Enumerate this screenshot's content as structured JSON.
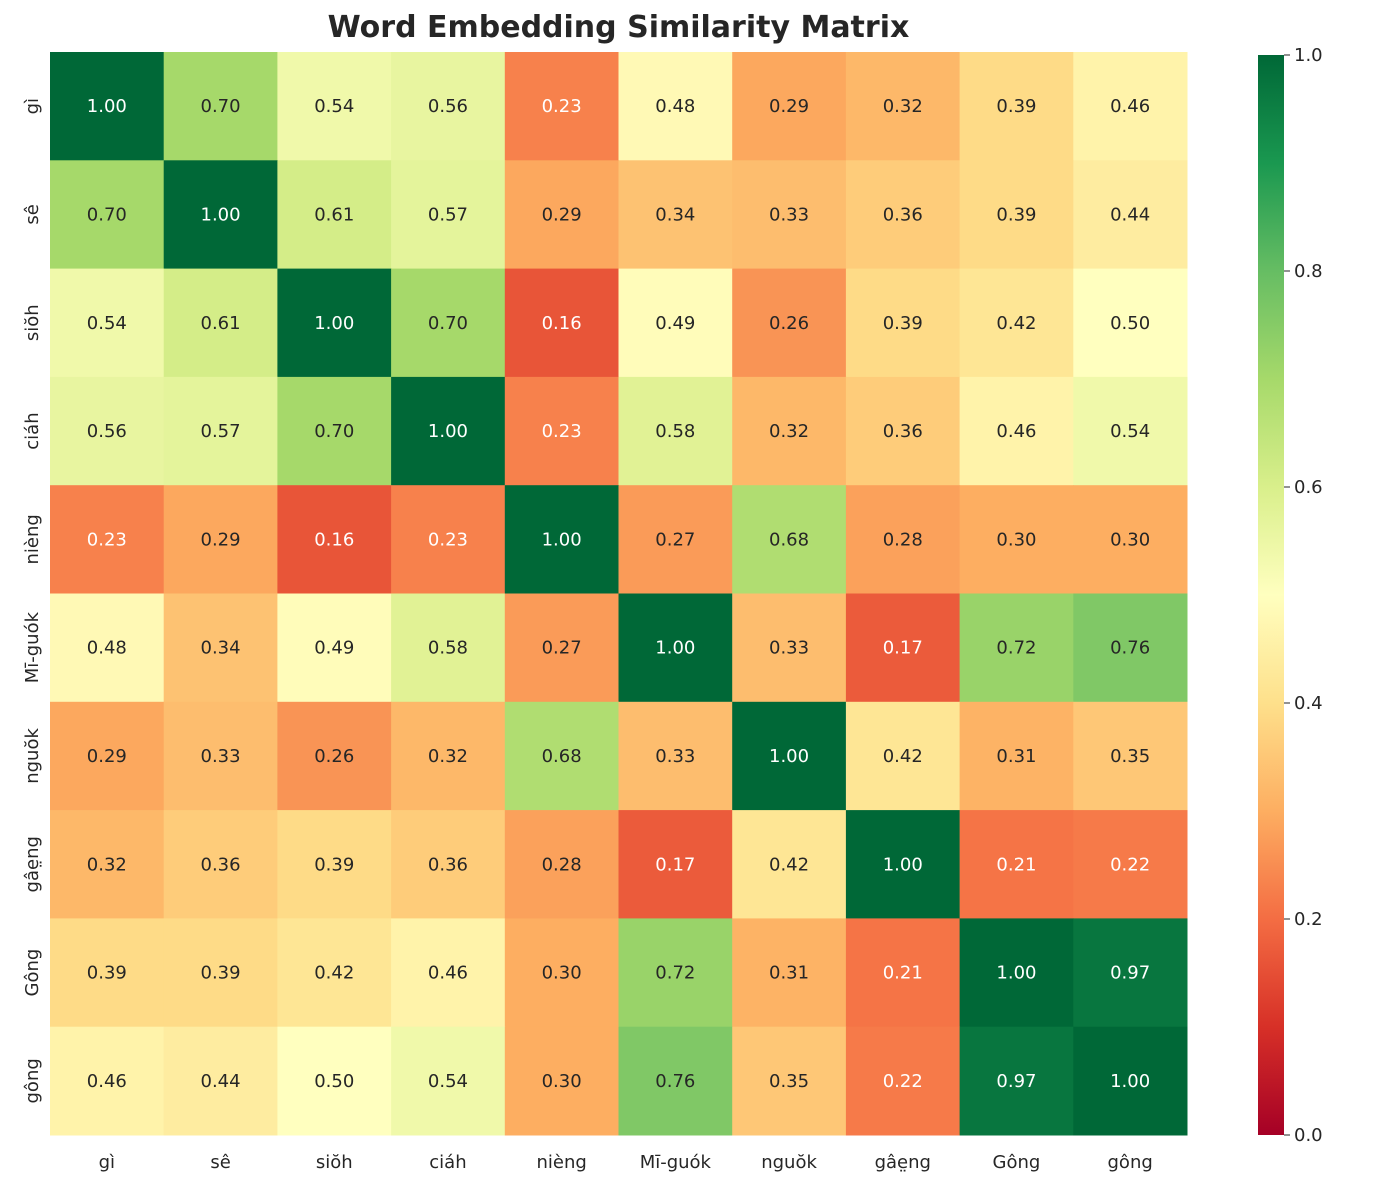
{
  "chart_data": {
    "type": "heatmap",
    "title": "Word Embedding Similarity Matrix",
    "xlabel": "",
    "ylabel": "",
    "x_labels": [
      "gì",
      "sê",
      "siŏh",
      "ciáh",
      "nièng",
      "Mī-guók",
      "nguŏk",
      "gâe̤ng",
      "Gông",
      "gông"
    ],
    "y_labels": [
      "gì",
      "sê",
      "siŏh",
      "ciáh",
      "nièng",
      "Mī-guók",
      "nguŏk",
      "gâe̤ng",
      "Gông",
      "gông"
    ],
    "values": [
      [
        1.0,
        0.7,
        0.54,
        0.56,
        0.23,
        0.48,
        0.29,
        0.32,
        0.39,
        0.46
      ],
      [
        0.7,
        1.0,
        0.61,
        0.57,
        0.29,
        0.34,
        0.33,
        0.36,
        0.39,
        0.44
      ],
      [
        0.54,
        0.61,
        1.0,
        0.7,
        0.16,
        0.49,
        0.26,
        0.39,
        0.42,
        0.5
      ],
      [
        0.56,
        0.57,
        0.7,
        1.0,
        0.23,
        0.58,
        0.32,
        0.36,
        0.46,
        0.54
      ],
      [
        0.23,
        0.29,
        0.16,
        0.23,
        1.0,
        0.27,
        0.68,
        0.28,
        0.3,
        0.3
      ],
      [
        0.48,
        0.34,
        0.49,
        0.58,
        0.27,
        1.0,
        0.33,
        0.17,
        0.72,
        0.76
      ],
      [
        0.29,
        0.33,
        0.26,
        0.32,
        0.68,
        0.33,
        1.0,
        0.42,
        0.31,
        0.35
      ],
      [
        0.32,
        0.36,
        0.39,
        0.36,
        0.28,
        0.17,
        0.42,
        1.0,
        0.21,
        0.22
      ],
      [
        0.39,
        0.39,
        0.42,
        0.46,
        0.3,
        0.72,
        0.31,
        0.21,
        1.0,
        0.97
      ],
      [
        0.46,
        0.44,
        0.5,
        0.54,
        0.3,
        0.76,
        0.35,
        0.22,
        0.97,
        1.0
      ]
    ],
    "colormap": "RdYlGn",
    "vmin": 0,
    "vmax": 1,
    "annotation_format": "0.00",
    "colorbar": {
      "ticks": [
        0.0,
        0.2,
        0.4,
        0.6,
        0.8,
        1.0
      ],
      "tick_labels": [
        "0.0",
        "0.2",
        "0.4",
        "0.6",
        "0.8",
        "1.0"
      ]
    },
    "colors": [
      "#a50026",
      "#d73027",
      "#f46d43",
      "#fdae61",
      "#fee08b",
      "#ffffbf",
      "#d9ef8b",
      "#a6d96a",
      "#66bd63",
      "#1a9850",
      "#006837"
    ]
  }
}
